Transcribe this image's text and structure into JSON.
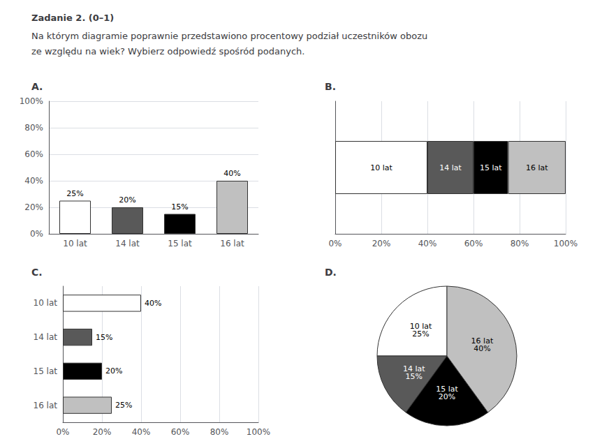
{
  "title": "Zadanie 2. (0–1)",
  "subtitle": [
    "Na którym diagramie poprawnie przedstawiono procentowy podział uczestników obozu",
    "ze względu na wiek? Wybierz odpowiedź spośród podanych."
  ],
  "chart_data": [
    {
      "type": "bar",
      "title": "A.",
      "categories": [
        "10 lat",
        "14 lat",
        "15 lat",
        "16 lat"
      ],
      "values": [
        25,
        20,
        15,
        40
      ],
      "colors": [
        "#ffffff",
        "#595959",
        "#000000",
        "#c0c0c0"
      ],
      "data_labels": true,
      "value_labels": [
        "25%",
        "20%",
        "15%",
        "40%"
      ],
      "ylim": [
        0,
        100
      ],
      "yticks": [
        {
          "value": 0,
          "label": "0%"
        },
        {
          "value": 20,
          "label": "20%"
        },
        {
          "value": 40,
          "label": "40%"
        },
        {
          "value": 60,
          "label": "60%"
        },
        {
          "value": 80,
          "label": "80%"
        },
        {
          "value": 100,
          "label": "100%"
        }
      ],
      "grid": true
    },
    {
      "type": "bar",
      "title": "B.",
      "orientation": "horizontal",
      "stacked": true,
      "categories": [
        null
      ],
      "series": [
        {
          "name": "10 lat",
          "color": "#ffffff",
          "values": [
            40
          ]
        },
        {
          "name": "14 lat",
          "color": "#595959",
          "values": [
            20
          ]
        },
        {
          "name": "15 lat",
          "color": "#000000",
          "values": [
            15
          ]
        },
        {
          "name": "16 lat",
          "color": "#c0c0c0",
          "values": [
            25
          ]
        }
      ],
      "xlim": [
        0,
        100
      ],
      "xticks": [
        {
          "value": 0,
          "label": "0%"
        },
        {
          "value": 20,
          "label": "20%"
        },
        {
          "value": 40,
          "label": "40%"
        },
        {
          "value": 60,
          "label": "60%"
        },
        {
          "value": 80,
          "label": "80%"
        },
        {
          "value": 100,
          "label": "100%"
        }
      ],
      "tick_labels": "x",
      "grid": true
    },
    {
      "type": "bar",
      "title": "C.",
      "orientation": "horizontal",
      "categories": [
        "16 lat",
        "15 lat",
        "14 lat",
        "10 lat"
      ],
      "values": [
        25,
        20,
        15,
        40
      ],
      "colors": [
        "#c0c0c0",
        "#000000",
        "#595959",
        "#ffffff"
      ],
      "data_labels": true,
      "value_labels": [
        "25%",
        "20%",
        "15%",
        "40%"
      ],
      "xlim": [
        0,
        100
      ],
      "xticks": [
        {
          "value": 0,
          "label": "0%"
        },
        {
          "value": 20,
          "label": "20%"
        },
        {
          "value": 40,
          "label": "40%"
        },
        {
          "value": 60,
          "label": "60%"
        },
        {
          "value": 80,
          "label": "80%"
        },
        {
          "value": 100,
          "label": "100%"
        }
      ],
      "grid": true
    },
    {
      "type": "pie",
      "title": "D.",
      "categories": [
        "10 lat",
        "14 lat",
        "15 lat",
        "16 lat"
      ],
      "values": [
        25,
        15,
        20,
        40
      ],
      "colors": [
        "#ffffff",
        "#595959",
        "#000000",
        "#c0c0c0"
      ],
      "data_labels": true,
      "value_labels": [
        "25%",
        "15%",
        "20%",
        "40%"
      ]
    }
  ]
}
